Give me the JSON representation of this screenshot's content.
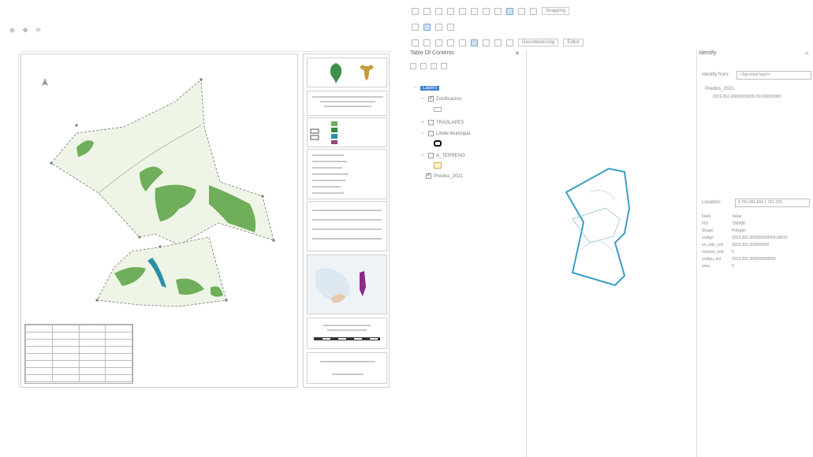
{
  "toc": {
    "title": "Table Of Contents",
    "layers_label": "Layers",
    "items": [
      {
        "label": "Zonificacion",
        "checked": true
      },
      {
        "label": "TRASLAPES",
        "checked": false
      },
      {
        "label": "Limite Municipal",
        "checked": false
      },
      {
        "label": "A_TERRENO",
        "checked": false
      },
      {
        "label": "Predios_2021",
        "checked": true
      }
    ]
  },
  "toolbar": {
    "snapping_label": "Snapping",
    "georeferencing_label": "Georeferencing",
    "editor_label": "Editor"
  },
  "identify": {
    "title": "Identify",
    "identify_from_label": "Identify from:",
    "identify_from_value": "<Top-most layer>",
    "tree_layer": "Predios_2021",
    "tree_feature": "2019.202.30000000000.09,000000000",
    "location_label": "Location:",
    "location_value": "4 781 991.993  1 761 229",
    "fields": [
      {
        "field": "Field",
        "value": "Value"
      },
      {
        "field": "FID",
        "value": "758988"
      },
      {
        "field": "Shape",
        "value": "Polygon"
      },
      {
        "field": "codigo",
        "value": "2019.202.300000000000.09010"
      },
      {
        "field": "ve_ede_cod",
        "value": "2019.202.300000000"
      },
      {
        "field": "numero_sub",
        "value": "5"
      },
      {
        "field": "codigo_ant",
        "value": "2019.202.300000000000"
      },
      {
        "field": "area",
        "value": "0"
      }
    ]
  },
  "colors": {
    "parcel_fill": "#eef5e6",
    "green_zone": "#6fae5a",
    "river": "#2a8ea8",
    "outline": "#3a9ec2",
    "selection_blue": "#3d7fd1"
  }
}
